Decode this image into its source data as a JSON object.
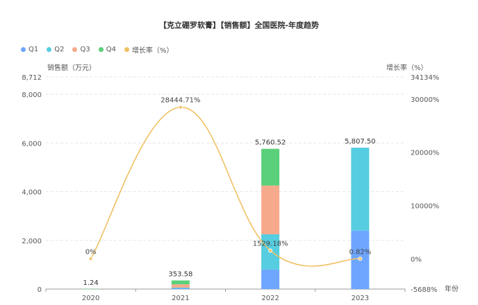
{
  "chart_data": {
    "type": "bar",
    "title": "【克立硼罗软膏】【销售额】全国医院-年度趋势",
    "xlabel": "年份",
    "ylabel": "销售额（万元）",
    "y2label": "增长率（%）",
    "categories": [
      "2020",
      "2021",
      "2022",
      "2023"
    ],
    "ylim": [
      0,
      8712
    ],
    "yticks": [
      "0",
      "2,000",
      "4,000",
      "6,000",
      "8,000",
      "8,712"
    ],
    "y2lim": [
      -5688,
      34134
    ],
    "y2ticks": [
      "-5688%",
      "0%",
      "10000%",
      "20000%",
      "30000%",
      "34134%"
    ],
    "series": [
      {
        "name": "Q1",
        "type": "bar",
        "color": "#6ea6ff",
        "values": [
          0.3,
          30,
          800,
          2400
        ]
      },
      {
        "name": "Q2",
        "type": "bar",
        "color": "#56cde0",
        "values": [
          0.3,
          30,
          1450,
          3407.5
        ]
      },
      {
        "name": "Q3",
        "type": "bar",
        "color": "#f7a98b",
        "values": [
          0.3,
          133.58,
          2000,
          0
        ]
      },
      {
        "name": "Q4",
        "type": "bar",
        "color": "#5ad07a",
        "values": [
          0.34,
          160,
          1510.52,
          0
        ]
      },
      {
        "name": "增长率（%）",
        "type": "line",
        "axis": "right",
        "color": "#f0c064",
        "values": [
          0,
          28444.71,
          1529.18,
          0.82
        ]
      }
    ],
    "totals": [
      1.24,
      353.58,
      5760.52,
      5807.5
    ],
    "total_labels": [
      "1.24",
      "353.58",
      "5,760.52",
      "5,807.50"
    ],
    "rate_labels": [
      "0%",
      "28444.71%",
      "1529.18%",
      "0.82%"
    ],
    "legend_position": "top-left",
    "grid": true
  }
}
